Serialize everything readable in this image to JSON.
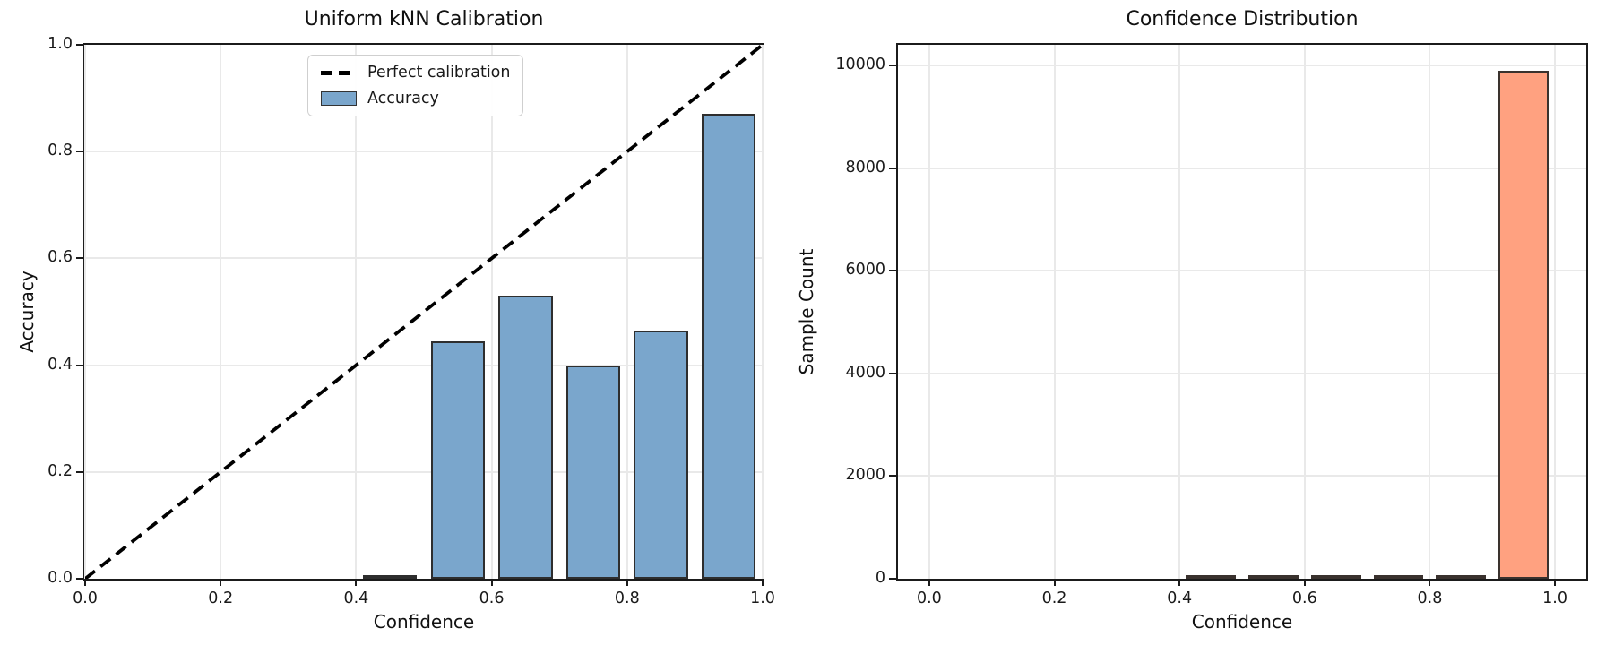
{
  "chart_data": [
    {
      "id": "calibration",
      "type": "bar",
      "title": "Uniform kNN Calibration",
      "xlabel": "Confidence",
      "ylabel": "Accuracy",
      "xlim": [
        0.0,
        1.0
      ],
      "ylim": [
        0.0,
        1.0
      ],
      "xticks": [
        0.0,
        0.2,
        0.4,
        0.6,
        0.8,
        1.0
      ],
      "xtick_labels": [
        "0.0",
        "0.2",
        "0.4",
        "0.6",
        "0.8",
        "1.0"
      ],
      "yticks": [
        0.0,
        0.2,
        0.4,
        0.6,
        0.8,
        1.0
      ],
      "ytick_labels": [
        "0.0",
        "0.2",
        "0.4",
        "0.6",
        "0.8",
        "1.0"
      ],
      "grid": true,
      "bars": {
        "label": "Accuracy",
        "centers": [
          0.45,
          0.55,
          0.65,
          0.75,
          0.85,
          0.95
        ],
        "heights": [
          0.005,
          0.445,
          0.53,
          0.4,
          0.465,
          0.87
        ],
        "width": 0.08,
        "fill": "#7aa6cc",
        "edge": "#2e2e2e"
      },
      "reference_line": {
        "label": "Perfect calibration",
        "x": [
          0.0,
          1.0
        ],
        "y": [
          0.0,
          1.0
        ],
        "style": "dashed",
        "color": "#000000"
      },
      "legend": {
        "position": "upper center-left",
        "items": [
          "Perfect calibration",
          "Accuracy"
        ]
      }
    },
    {
      "id": "confidence-distribution",
      "type": "bar",
      "title": "Confidence Distribution",
      "xlabel": "Confidence",
      "ylabel": "Sample Count",
      "xlim": [
        -0.05,
        1.05
      ],
      "ylim": [
        0,
        10400
      ],
      "xticks": [
        0.0,
        0.2,
        0.4,
        0.6,
        0.8,
        1.0
      ],
      "xtick_labels": [
        "0.0",
        "0.2",
        "0.4",
        "0.6",
        "0.8",
        "1.0"
      ],
      "yticks": [
        0,
        2000,
        4000,
        6000,
        8000,
        10000
      ],
      "ytick_labels": [
        "0",
        "2000",
        "4000",
        "6000",
        "8000",
        "10000"
      ],
      "grid": true,
      "bars": {
        "label": "Sample Count",
        "centers": [
          0.05,
          0.15,
          0.25,
          0.35,
          0.45,
          0.55,
          0.65,
          0.75,
          0.85,
          0.95
        ],
        "heights": [
          0,
          0,
          0,
          0,
          2,
          10,
          25,
          10,
          50,
          9890
        ],
        "width": 0.08,
        "fill": "#ffa180",
        "edge": "#3a322e"
      }
    }
  ]
}
